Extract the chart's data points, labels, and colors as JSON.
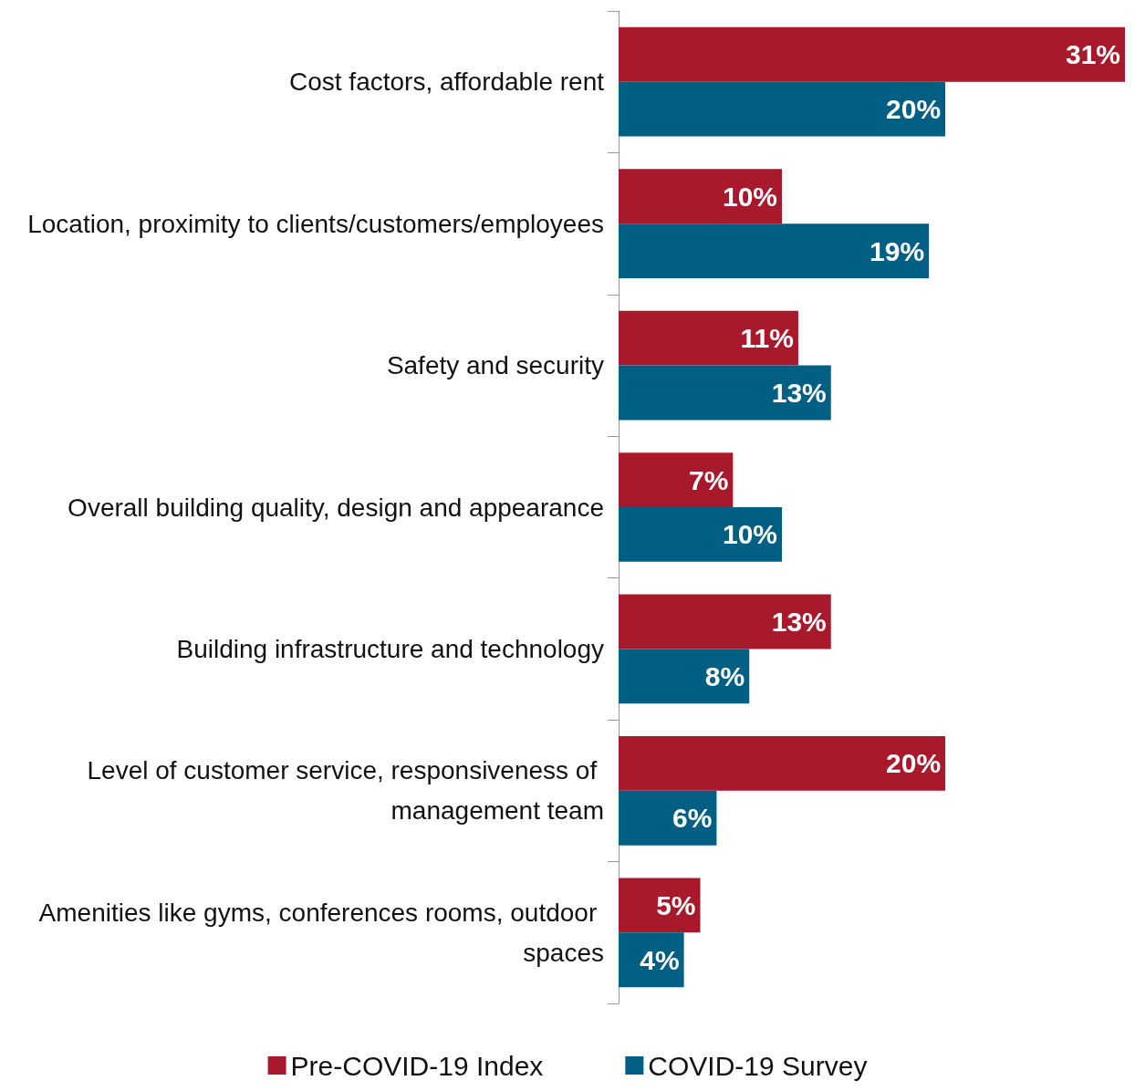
{
  "chart_data": {
    "type": "bar",
    "orientation": "horizontal",
    "categories": [
      "Cost factors, affordable rent",
      "Location, proximity to clients/customers/employees",
      "Safety and security",
      "Overall building quality, design and appearance",
      "Building infrastructure and technology",
      "Level of customer service, responsiveness of management team",
      "Amenities like gyms, conferences rooms, outdoor spaces"
    ],
    "series": [
      {
        "name": "Pre-COVID-19 Index",
        "color": "#a8192b",
        "values": [
          31,
          10,
          11,
          7,
          13,
          20,
          5
        ],
        "value_labels": [
          "31%",
          "10%",
          "11%",
          "7%",
          "13%",
          "20%",
          "5%"
        ]
      },
      {
        "name": "COVID-19 Survey",
        "color": "#005f83",
        "values": [
          20,
          19,
          13,
          10,
          8,
          6,
          4
        ],
        "value_labels": [
          "20%",
          "19%",
          "13%",
          "10%",
          "8%",
          "6%",
          "4%"
        ]
      }
    ],
    "legend": "bottom"
  }
}
